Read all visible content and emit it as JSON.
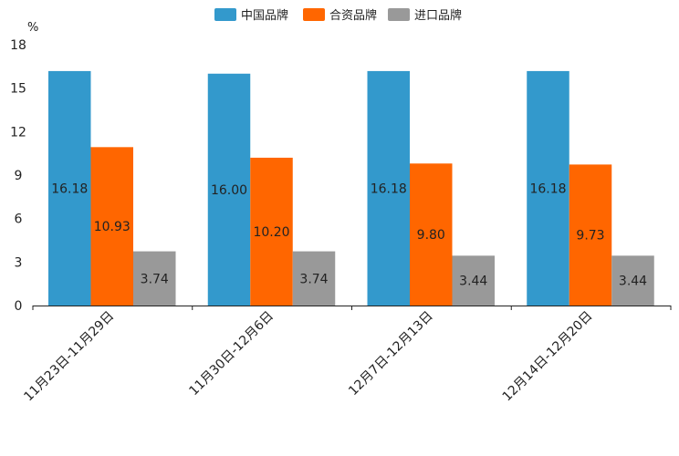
{
  "chart_data": {
    "type": "bar",
    "title": "",
    "xlabel": "",
    "ylabel": "%",
    "ylim": [
      0,
      18
    ],
    "yticks": [
      0,
      3,
      6,
      9,
      12,
      15,
      18
    ],
    "grid": false,
    "legend_position": "top-center",
    "categories": [
      "11月23日-11月29日",
      "11月30日-12月6日",
      "12月7日-12月13日",
      "12月14日-12月20日"
    ],
    "series": [
      {
        "name": "中国品牌",
        "color": "#3399cc",
        "values": [
          16.18,
          16.0,
          16.18,
          16.18
        ],
        "labels": [
          "16.18",
          "16.00",
          "16.18",
          "16.18"
        ]
      },
      {
        "name": "合资品牌",
        "color": "#ff6600",
        "values": [
          10.93,
          10.2,
          9.8,
          9.73
        ],
        "labels": [
          "10.93",
          "10.20",
          "9.80",
          "9.73"
        ]
      },
      {
        "name": "进口品牌",
        "color": "#999999",
        "values": [
          3.74,
          3.74,
          3.44,
          3.44
        ],
        "labels": [
          "3.74",
          "3.74",
          "3.44",
          "3.44"
        ]
      }
    ]
  }
}
